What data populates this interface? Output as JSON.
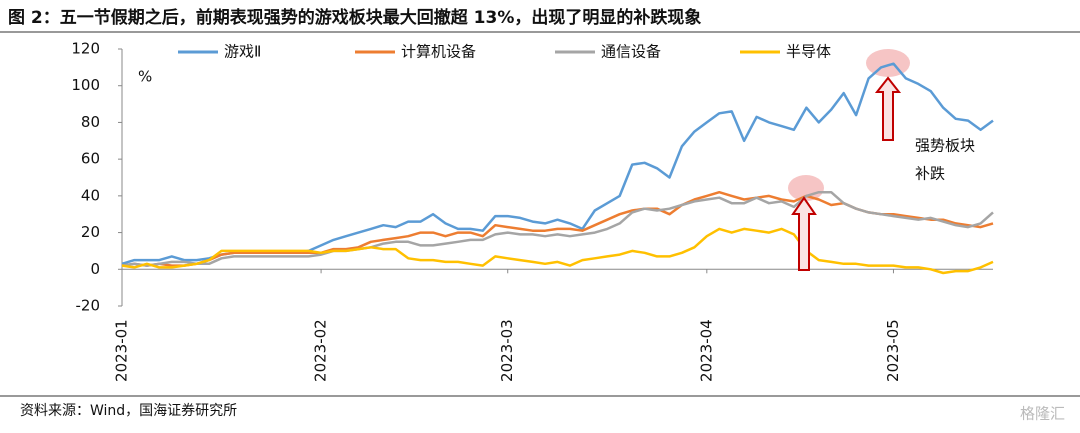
{
  "chart_data": {
    "type": "line",
    "title": "图 2：五一节假期之后，前期表现强势的游戏板块最大回撤超 13%，出现了明显的补跌现象",
    "y_label": "%",
    "annotation": [
      "强势板块",
      "补跌"
    ],
    "source": "资料来源：Wind，国海证券研究所",
    "watermark": "格隆汇",
    "categories": [
      "2023-01",
      null,
      null,
      null,
      null,
      null,
      null,
      null,
      null,
      null,
      null,
      null,
      null,
      null,
      null,
      null,
      "2023-02",
      null,
      null,
      null,
      null,
      null,
      null,
      null,
      null,
      null,
      null,
      null,
      null,
      null,
      null,
      "2023-03",
      null,
      null,
      null,
      null,
      null,
      null,
      null,
      null,
      null,
      null,
      null,
      null,
      null,
      null,
      null,
      "2023-04",
      null,
      null,
      null,
      null,
      null,
      null,
      null,
      null,
      null,
      null,
      null,
      null,
      null,
      null,
      "2023-05",
      null,
      null,
      null,
      null,
      null,
      null,
      null,
      null
    ],
    "ylim": [
      -20,
      120
    ],
    "yticks": [
      -20,
      0,
      20,
      40,
      60,
      80,
      100,
      120
    ],
    "series": [
      {
        "name": "游戏Ⅱ",
        "color": "#5b9bd5",
        "values": [
          3,
          5,
          5,
          5,
          7,
          5,
          5,
          6,
          8,
          9,
          9,
          9,
          9,
          9,
          9,
          10,
          13,
          16,
          18,
          20,
          22,
          24,
          23,
          26,
          26,
          30,
          25,
          22,
          22,
          21,
          29,
          29,
          28,
          26,
          25,
          27,
          25,
          22,
          32,
          36,
          40,
          57,
          58,
          55,
          50,
          67,
          75,
          80,
          85,
          86,
          70,
          83,
          80,
          78,
          76,
          88,
          80,
          87,
          96,
          84,
          104,
          110,
          112,
          104,
          101,
          97,
          88,
          82,
          81,
          76,
          81
        ]
      },
      {
        "name": "计算机设备",
        "color": "#ed7d31",
        "values": [
          2,
          3,
          2,
          3,
          2,
          2,
          3,
          5,
          8,
          9,
          9,
          9,
          9,
          9,
          9,
          9,
          9,
          11,
          11,
          12,
          15,
          16,
          17,
          18,
          20,
          20,
          18,
          20,
          20,
          18,
          24,
          23,
          22,
          21,
          21,
          22,
          22,
          21,
          24,
          27,
          30,
          32,
          33,
          33,
          30,
          35,
          38,
          40,
          42,
          40,
          38,
          39,
          40,
          38,
          37,
          40,
          38,
          35,
          36,
          33,
          31,
          30,
          30,
          29,
          28,
          27,
          27,
          25,
          24,
          23,
          25
        ]
      },
      {
        "name": "通信设备",
        "color": "#a5a5a5",
        "values": [
          2,
          3,
          2,
          3,
          4,
          4,
          3,
          3,
          6,
          7,
          7,
          7,
          7,
          7,
          7,
          7,
          8,
          10,
          10,
          11,
          12,
          14,
          15,
          15,
          13,
          13,
          14,
          15,
          16,
          16,
          19,
          20,
          19,
          19,
          18,
          19,
          18,
          19,
          20,
          22,
          25,
          31,
          33,
          32,
          33,
          35,
          37,
          38,
          39,
          36,
          36,
          39,
          36,
          37,
          34,
          40,
          42,
          42,
          36,
          33,
          31,
          30,
          29,
          28,
          27,
          28,
          26,
          24,
          23,
          25,
          31
        ]
      },
      {
        "name": "半导体",
        "color": "#ffc000",
        "values": [
          2,
          1,
          3,
          1,
          1,
          2,
          3,
          5,
          10,
          10,
          10,
          10,
          10,
          10,
          10,
          10,
          9,
          10,
          10,
          11,
          12,
          11,
          11,
          6,
          5,
          5,
          4,
          4,
          3,
          2,
          7,
          6,
          5,
          4,
          3,
          4,
          2,
          5,
          6,
          7,
          8,
          10,
          9,
          7,
          7,
          9,
          12,
          18,
          22,
          20,
          22,
          21,
          20,
          22,
          19,
          10,
          5,
          4,
          3,
          3,
          2,
          2,
          2,
          1,
          1,
          0,
          -2,
          -1,
          -1,
          1,
          4
        ]
      }
    ]
  }
}
